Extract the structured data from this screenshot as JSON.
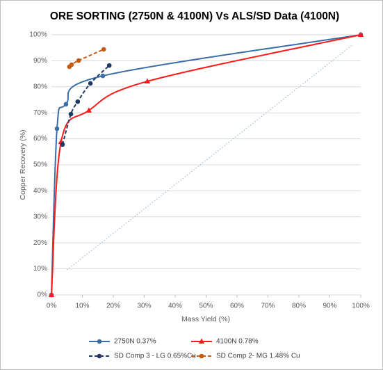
{
  "chart_data": {
    "type": "line",
    "title": "ORE SORTING (2750N & 4100N) Vs ALS/SD Data (4100N)",
    "x_label": "Mass Yield (%)",
    "y_label": "Copper Recovery (%)",
    "xlim": [
      0,
      100
    ],
    "ylim": [
      0,
      100
    ],
    "xticks": [
      {
        "value": 0,
        "label": "0%"
      },
      {
        "value": 10,
        "label": "10%"
      },
      {
        "value": 20,
        "label": "20%"
      },
      {
        "value": 30,
        "label": "30%"
      },
      {
        "value": 40,
        "label": "40%"
      },
      {
        "value": 50,
        "label": "50%"
      },
      {
        "value": 60,
        "label": "60%"
      },
      {
        "value": 70,
        "label": "70%"
      },
      {
        "value": 80,
        "label": "80%"
      },
      {
        "value": 90,
        "label": "90%"
      },
      {
        "value": 100,
        "label": "100%"
      }
    ],
    "yticks": [
      {
        "value": 0,
        "label": "0%"
      },
      {
        "value": 10,
        "label": "10%"
      },
      {
        "value": 20,
        "label": "20%"
      },
      {
        "value": 30,
        "label": "30%"
      },
      {
        "value": 40,
        "label": "40%"
      },
      {
        "value": 50,
        "label": "50%"
      },
      {
        "value": 60,
        "label": "60%"
      },
      {
        "value": 70,
        "label": "70%"
      },
      {
        "value": 80,
        "label": "80%"
      },
      {
        "value": 90,
        "label": "90%"
      },
      {
        "value": 100,
        "label": "100%"
      }
    ],
    "grid": true,
    "smooth": true,
    "legend": "bottom",
    "series": [
      {
        "name": "2750N 0.37%",
        "color": "#3a6ea5",
        "marker": "circle",
        "dash": "solid",
        "x": [
          0,
          1.8,
          4.7,
          16.6,
          100
        ],
        "values": [
          0,
          63.9,
          73.3,
          84.2,
          100
        ]
      },
      {
        "name": "4100N 0.78%",
        "color": "#ff1a1a",
        "marker": "triangle",
        "dash": "solid",
        "x": [
          0,
          3.1,
          12.1,
          31,
          100
        ],
        "values": [
          0,
          58.8,
          70.9,
          82.1,
          100
        ]
      },
      {
        "name": "SD Comp 3 - LG 0.65%Cu",
        "color": "#203864",
        "marker": "circle",
        "dash": "dashed",
        "x": [
          3.6,
          6.3,
          8.5,
          12.6,
          18.7
        ],
        "values": [
          57.8,
          69.5,
          74.3,
          81.3,
          88.2
        ]
      },
      {
        "name": "SD Comp 2- MG 1.48% Cu",
        "color": "#c55a11",
        "marker": "circle",
        "dash": "dashed",
        "x": [
          5.8,
          6.5,
          8.8,
          16.9
        ],
        "values": [
          87.7,
          88.5,
          90.1,
          94.4
        ]
      },
      {
        "color": "#8faadc",
        "marker": "none",
        "dash": "dotted",
        "x": [
          5,
          97.5
        ],
        "values": [
          9.6,
          96.3
        ]
      }
    ]
  }
}
